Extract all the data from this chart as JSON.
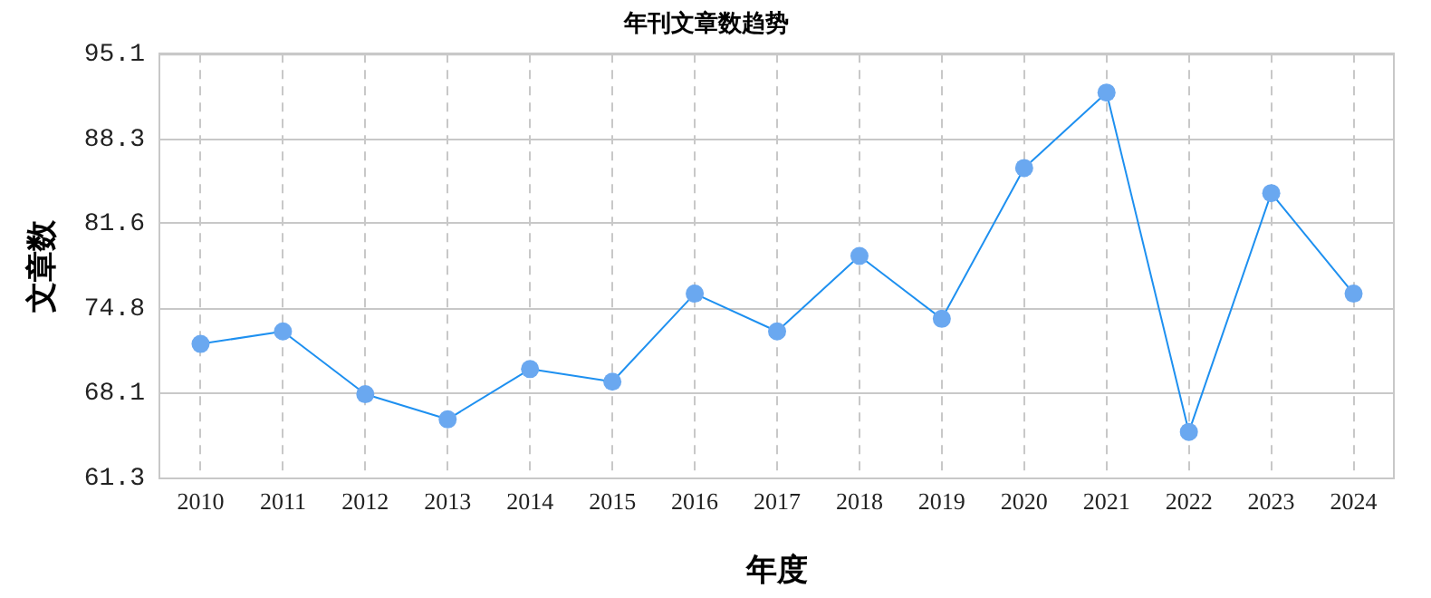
{
  "chart_data": {
    "type": "line",
    "title": "年刊文章数趋势",
    "xlabel": "年度",
    "ylabel": "文章数",
    "categories": [
      "2010",
      "2011",
      "2012",
      "2013",
      "2014",
      "2015",
      "2016",
      "2017",
      "2018",
      "2019",
      "2020",
      "2021",
      "2022",
      "2023",
      "2024"
    ],
    "series": [
      {
        "color": "#1e90f0",
        "values": [
          72,
          73,
          68,
          66,
          70,
          69,
          76,
          73,
          79,
          74,
          86,
          92,
          65,
          84,
          76
        ]
      }
    ],
    "ylim": [
      61.3,
      95.1
    ],
    "yticks": [
      61.3,
      68.1,
      74.8,
      81.6,
      88.3,
      95.1
    ],
    "grid": true,
    "legend": false,
    "marker": "circle",
    "line_style": "solid"
  }
}
